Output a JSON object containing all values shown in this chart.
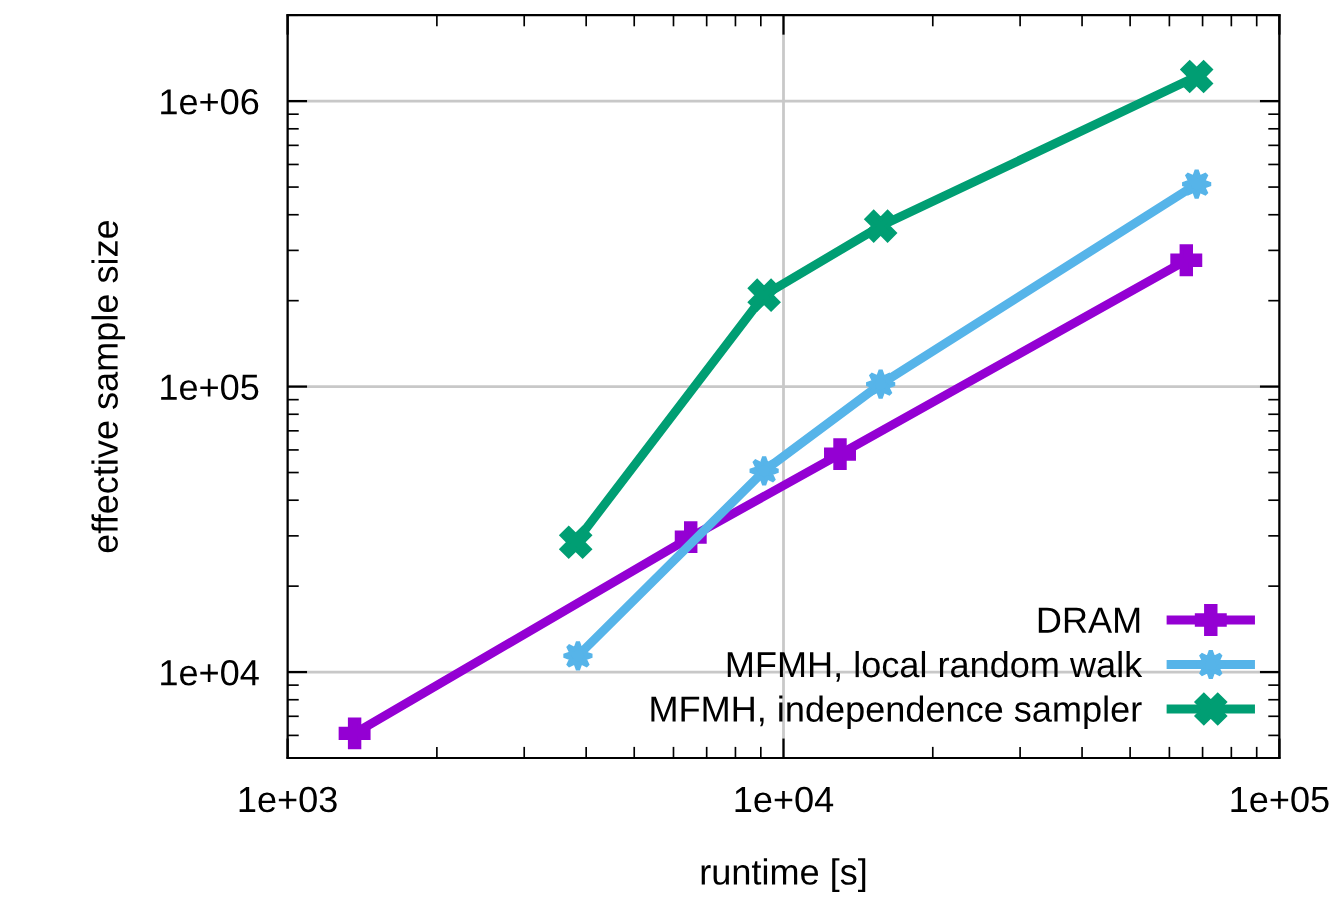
{
  "chart_data": {
    "type": "line",
    "xlabel": "runtime [s]",
    "ylabel": "effective sample size",
    "log": "xy",
    "grid": true,
    "legend": "bottom right",
    "xlim": [
      1000,
      100000
    ],
    "xticks": [
      {
        "value": 1000,
        "label": "1e+03"
      },
      {
        "value": 10000,
        "label": "1e+04"
      },
      {
        "value": 100000,
        "label": "1e+05"
      }
    ],
    "ylim": [
      5000,
      2000000
    ],
    "yticks": [
      {
        "value": 10000,
        "label": "1e+04"
      },
      {
        "value": 100000,
        "label": "1e+05"
      },
      {
        "value": 1000000,
        "label": "1e+06"
      }
    ],
    "series": [
      {
        "name": "DRAM",
        "color": "#9400d3",
        "marker": "plus",
        "x": [
          1365,
          6500,
          13000,
          64900
        ],
        "values": [
          6100,
          29700,
          58000,
          277000
        ]
      },
      {
        "name": "MFMH, local random walk",
        "color": "#56b4e9",
        "marker": "star",
        "x": [
          3850,
          9140,
          15700,
          68100
        ],
        "values": [
          11400,
          50700,
          102000,
          512000
        ]
      },
      {
        "name": "MFMH, independence sampler",
        "color": "#009e73",
        "marker": "cross",
        "x": [
          3810,
          9140,
          15700,
          68100
        ],
        "values": [
          28500,
          209000,
          365000,
          1220000
        ]
      }
    ]
  }
}
